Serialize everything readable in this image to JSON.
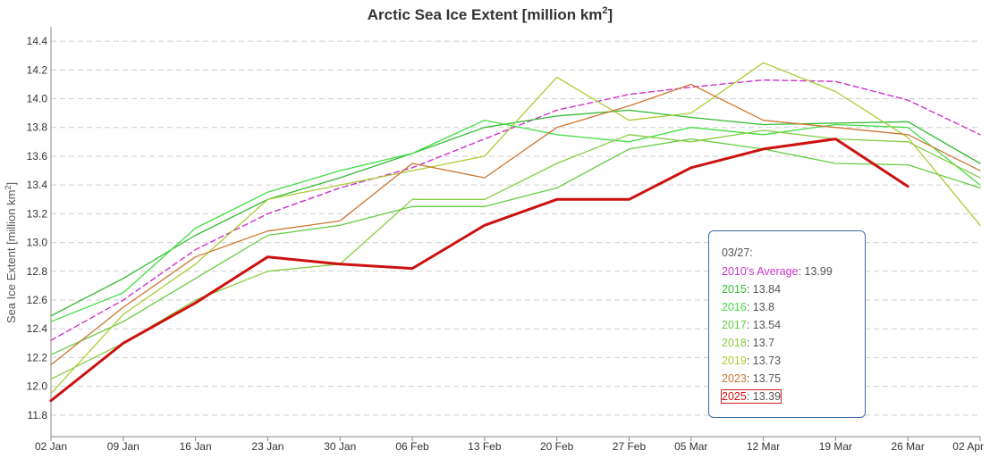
{
  "chart_data": {
    "type": "line",
    "title": "Arctic Sea Ice Extent [million km²]",
    "title_main": "Arctic Sea Ice Extent [million km",
    "title_sup": "2",
    "title_end": "]",
    "ylabel": "Sea Ice Extent [million km²]",
    "ylabel_main": "Sea Ice Extent [million km",
    "ylabel_sup": "2",
    "ylabel_end": "]",
    "xlabel": "",
    "x_unit": "day of year",
    "ylim": [
      11.65,
      14.5
    ],
    "xlim": [
      2,
      92
    ],
    "grid": true,
    "yticks": [
      11.8,
      12.0,
      12.2,
      12.4,
      12.6,
      12.8,
      13.0,
      13.2,
      13.4,
      13.6,
      13.8,
      14.0,
      14.2,
      14.4
    ],
    "ytick_labels": [
      "11.8",
      "12.0",
      "12.2",
      "12.4",
      "12.6",
      "12.8",
      "13.0",
      "13.2",
      "13.4",
      "13.6",
      "13.8",
      "14.0",
      "14.2",
      "14.4"
    ],
    "xticks": [
      2,
      9,
      16,
      23,
      30,
      37,
      44,
      51,
      58,
      64,
      71,
      78,
      85,
      92
    ],
    "xtick_labels": [
      "02 Jan",
      "09 Jan",
      "16 Jan",
      "23 Jan",
      "30 Jan",
      "06 Feb",
      "13 Feb",
      "20 Feb",
      "27 Feb",
      "05 Mar",
      "12 Mar",
      "19 Mar",
      "26 Mar",
      "02 Apr"
    ],
    "x": [
      2,
      9,
      16,
      23,
      30,
      37,
      44,
      51,
      58,
      64,
      71,
      78,
      85,
      92
    ],
    "series": [
      {
        "name": "2010's Average",
        "color": "#cc33cc",
        "dashed": true,
        "values": [
          12.32,
          12.6,
          12.95,
          13.2,
          13.38,
          13.52,
          13.72,
          13.92,
          14.03,
          14.08,
          14.13,
          14.12,
          13.99,
          13.75
        ]
      },
      {
        "name": "2015",
        "color": "#33bb33",
        "dashed": false,
        "values": [
          12.49,
          12.75,
          13.05,
          13.3,
          13.45,
          13.62,
          13.8,
          13.88,
          13.92,
          13.87,
          13.82,
          13.83,
          13.84,
          13.55
        ]
      },
      {
        "name": "2016",
        "color": "#44dd44",
        "dashed": false,
        "values": [
          12.45,
          12.65,
          13.1,
          13.35,
          13.5,
          13.62,
          13.85,
          13.75,
          13.7,
          13.8,
          13.75,
          13.82,
          13.8,
          13.4
        ]
      },
      {
        "name": "2017",
        "color": "#66cc44",
        "dashed": false,
        "values": [
          12.22,
          12.45,
          12.75,
          13.05,
          13.12,
          13.25,
          13.25,
          13.38,
          13.65,
          13.72,
          13.65,
          13.55,
          13.54,
          13.38
        ]
      },
      {
        "name": "2018",
        "color": "#88cc44",
        "dashed": false,
        "values": [
          12.05,
          12.3,
          12.6,
          12.8,
          12.85,
          13.3,
          13.3,
          13.55,
          13.75,
          13.7,
          13.78,
          13.72,
          13.7,
          13.45
        ]
      },
      {
        "name": "2019",
        "color": "#aacc33",
        "dashed": false,
        "values": [
          11.95,
          12.5,
          12.85,
          13.3,
          13.4,
          13.5,
          13.6,
          14.15,
          13.85,
          13.9,
          14.25,
          14.05,
          13.73,
          13.12
        ]
      },
      {
        "name": "2023",
        "color": "#cc7733",
        "dashed": false,
        "values": [
          12.15,
          12.55,
          12.9,
          13.08,
          13.15,
          13.55,
          13.45,
          13.8,
          13.95,
          14.1,
          13.85,
          13.8,
          13.75,
          13.5
        ]
      },
      {
        "name": "2025",
        "color": "#cc1111",
        "dashed": false,
        "bold": true,
        "values": [
          11.9,
          12.3,
          12.58,
          12.9,
          12.85,
          12.82,
          13.12,
          13.3,
          13.3,
          13.52,
          13.65,
          13.72,
          13.39,
          null
        ]
      }
    ]
  },
  "tooltip": {
    "date": "03/27:",
    "rows": [
      {
        "name": "2010's Average",
        "value": "13.99",
        "color": "#cc33cc"
      },
      {
        "name": "2015",
        "value": "13.84",
        "color": "#33bb33"
      },
      {
        "name": "2016",
        "value": "13.8",
        "color": "#44dd44"
      },
      {
        "name": "2017",
        "value": "13.54",
        "color": "#66cc44"
      },
      {
        "name": "2018",
        "value": "13.7",
        "color": "#88cc44"
      },
      {
        "name": "2019",
        "value": "13.73",
        "color": "#aacc33"
      },
      {
        "name": "2023",
        "value": "13.75",
        "color": "#cc7733"
      },
      {
        "name": "2025",
        "value": "13.39",
        "color": "#cc1111"
      }
    ]
  }
}
